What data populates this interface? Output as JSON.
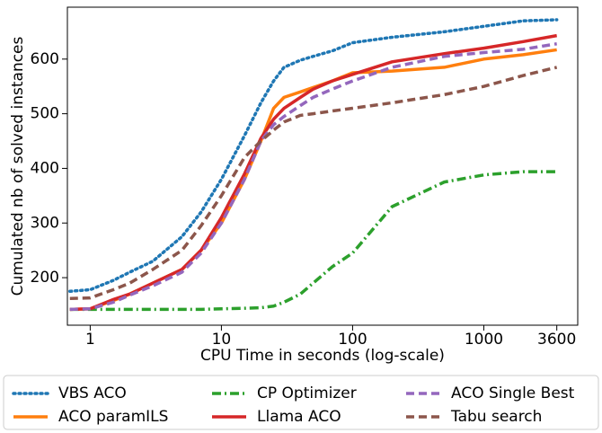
{
  "chart_data": {
    "type": "line",
    "xlabel": "CPU Time in seconds (log-scale)",
    "ylabel": "Cumulated nb of solved instances",
    "x": [
      0.7,
      1,
      1.5,
      2,
      3,
      5,
      7,
      10,
      15,
      20,
      25,
      30,
      40,
      50,
      70,
      100,
      200,
      500,
      1000,
      2000,
      3600
    ],
    "xscale": "log",
    "xlim": [
      0.67,
      5200
    ],
    "xticks": [
      1,
      10,
      100,
      1000,
      3600
    ],
    "ylim": [
      113,
      695
    ],
    "yticks": [
      200,
      300,
      400,
      500,
      600
    ],
    "legend": "lower center",
    "series": [
      {
        "name": "VBS ACO",
        "color": "#1f77b4",
        "linestyle": "dotted",
        "values": [
          175,
          178,
          195,
          210,
          230,
          275,
          320,
          380,
          460,
          520,
          560,
          585,
          598,
          605,
          615,
          630,
          640,
          650,
          660,
          670,
          672
        ]
      },
      {
        "name": "ACO paramILS",
        "color": "#ff7f0e",
        "linestyle": "solid",
        "values": [
          142,
          143,
          158,
          170,
          190,
          215,
          250,
          300,
          380,
          450,
          510,
          530,
          540,
          548,
          560,
          575,
          578,
          585,
          600,
          608,
          617
        ]
      },
      {
        "name": "CP Optimizer",
        "color": "#2ca02c",
        "linestyle": "dashdot",
        "values": [
          142,
          142,
          142,
          142,
          142,
          142,
          142,
          143,
          144,
          145,
          148,
          155,
          170,
          190,
          220,
          245,
          330,
          375,
          388,
          394,
          394
        ]
      },
      {
        "name": "Llama ACO",
        "color": "#d62728",
        "linestyle": "solid",
        "values": [
          142,
          143,
          160,
          170,
          190,
          215,
          250,
          310,
          390,
          455,
          490,
          510,
          530,
          545,
          560,
          572,
          595,
          610,
          620,
          632,
          643
        ]
      },
      {
        "name": "ACO Single Best",
        "color": "#9467bd",
        "linestyle": "dashed",
        "values": [
          142,
          143,
          155,
          168,
          185,
          210,
          245,
          300,
          380,
          450,
          480,
          495,
          515,
          530,
          545,
          560,
          585,
          605,
          612,
          618,
          628
        ]
      },
      {
        "name": "Tabu search",
        "color": "#8c564b",
        "linestyle": "dashed",
        "values": [
          162,
          163,
          178,
          190,
          215,
          250,
          295,
          350,
          420,
          450,
          470,
          485,
          497,
          500,
          505,
          510,
          520,
          535,
          550,
          570,
          585
        ]
      }
    ]
  }
}
